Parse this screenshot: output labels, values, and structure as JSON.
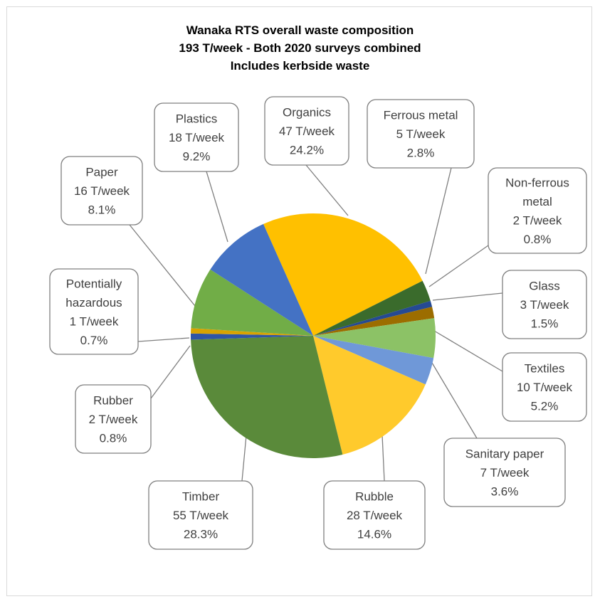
{
  "chart_data": {
    "type": "pie",
    "title": [
      "Wanaka RTS overall waste composition",
      "193 T/week - Both 2020 surveys combined",
      "Includes kerbside waste"
    ],
    "total": "193 T/week",
    "slices": [
      {
        "name": "Organics",
        "tonnes": "47 T/week",
        "percent": "24.2%",
        "value": 24.2,
        "color": "#ffc000",
        "label_lines": [
          "Organics",
          "47 T/week",
          "24.2%"
        ]
      },
      {
        "name": "Ferrous metal",
        "tonnes": "5 T/week",
        "percent": "2.8%",
        "value": 2.8,
        "color": "#3a6b2c",
        "label_lines": [
          "Ferrous metal",
          "5 T/week",
          "2.8%"
        ]
      },
      {
        "name": "Non-ferrous metal",
        "tonnes": "2 T/week",
        "percent": "0.8%",
        "value": 0.8,
        "color": "#254a93",
        "label_lines": [
          "Non-ferrous",
          "metal",
          "2 T/week",
          "0.8%"
        ]
      },
      {
        "name": "Glass",
        "tonnes": "3 T/week",
        "percent": "1.5%",
        "value": 1.5,
        "color": "#9c6d00",
        "label_lines": [
          "Glass",
          "3 T/week",
          "1.5%"
        ]
      },
      {
        "name": "Textiles",
        "tonnes": "10 T/week",
        "percent": "5.2%",
        "value": 5.2,
        "color": "#8cc266",
        "label_lines": [
          "Textiles",
          "10 T/week",
          "5.2%"
        ]
      },
      {
        "name": "Sanitary paper",
        "tonnes": "7 T/week",
        "percent": "3.6%",
        "value": 3.6,
        "color": "#6f98d8",
        "label_lines": [
          "Sanitary paper",
          "7 T/week",
          "3.6%"
        ]
      },
      {
        "name": "Rubble",
        "tonnes": "28 T/week",
        "percent": "14.6%",
        "value": 14.6,
        "color": "#ffca2c",
        "label_lines": [
          "Rubble",
          "28 T/week",
          "14.6%"
        ]
      },
      {
        "name": "Timber",
        "tonnes": "55 T/week",
        "percent": "28.3%",
        "value": 28.3,
        "color": "#5a8a3a",
        "label_lines": [
          "Timber",
          "55 T/week",
          "28.3%"
        ]
      },
      {
        "name": "Rubber",
        "tonnes": "2 T/week",
        "percent": "0.8%",
        "value": 0.8,
        "color": "#2f55a5",
        "label_lines": [
          "Rubber",
          "2 T/week",
          "0.8%"
        ]
      },
      {
        "name": "Potentially hazardous",
        "tonnes": "1 T/week",
        "percent": "0.7%",
        "value": 0.7,
        "color": "#d9a300",
        "label_lines": [
          "Potentially",
          "hazardous",
          "1 T/week",
          "0.7%"
        ]
      },
      {
        "name": "Paper",
        "tonnes": "16 T/week",
        "percent": "8.1%",
        "value": 8.1,
        "color": "#71ad47",
        "label_lines": [
          "Paper",
          "16 T/week",
          "8.1%"
        ]
      },
      {
        "name": "Plastics",
        "tonnes": "18 T/week",
        "percent": "9.2%",
        "value": 9.2,
        "color": "#4472c4",
        "label_lines": [
          "Plastics",
          "18 T/week",
          "9.2%"
        ]
      }
    ]
  }
}
